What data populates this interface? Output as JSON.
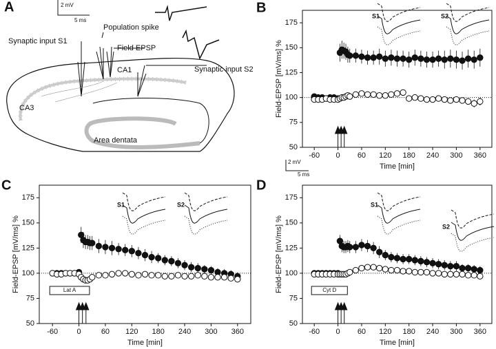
{
  "diagram": {
    "panel": "A",
    "labels": [
      "Synaptic input S1",
      "Population spike",
      "Field EPSP",
      "CA1",
      "Synaptic input S2",
      "CA3",
      "Area dentata"
    ],
    "scale_bar": {
      "amplitude": "2 mV",
      "time": "5 ms"
    }
  },
  "scale_bar": {
    "amplitude": "2 mV",
    "time": "5 ms"
  },
  "chart_data": [
    {
      "type": "scatter",
      "panel": "B",
      "xlabel": "Time [min]",
      "ylabel": "Field-EPSP [mV/ms] %",
      "xlim": [
        -90,
        390
      ],
      "ylim": [
        50,
        187.5
      ],
      "xticks": [
        -60,
        0,
        60,
        120,
        180,
        240,
        300,
        360
      ],
      "yticks": [
        50,
        75,
        100,
        125,
        150,
        175
      ],
      "reference_y": 100,
      "arrows_x": [
        0,
        8,
        16
      ],
      "inset_labels": [
        "S1",
        "S2"
      ],
      "x": [
        -60,
        -50,
        -40,
        -30,
        -20,
        -10,
        0,
        5,
        10,
        15,
        20,
        25,
        30,
        45,
        60,
        75,
        90,
        105,
        120,
        135,
        150,
        165,
        180,
        195,
        210,
        225,
        240,
        255,
        270,
        285,
        300,
        315,
        330,
        345,
        360
      ],
      "series": [
        {
          "name": "S1",
          "color": "#111111",
          "filled": true,
          "values": [
            101,
            100,
            100,
            99,
            100,
            100,
            99,
            145,
            148,
            147,
            146,
            143,
            142,
            142,
            141,
            140,
            140,
            141,
            139,
            140,
            139,
            139,
            138,
            140,
            139,
            138,
            138,
            139,
            138,
            139,
            138,
            137,
            139,
            138,
            140
          ],
          "errors": [
            2,
            2,
            2,
            2,
            2,
            2,
            2,
            9,
            9,
            8,
            8,
            8,
            7,
            7,
            7,
            7,
            7,
            8,
            8,
            8,
            8,
            8,
            8,
            8,
            8,
            8,
            8,
            8,
            9,
            9,
            9,
            9,
            9,
            9,
            9
          ]
        },
        {
          "name": "S2",
          "color": "#111111",
          "filled": false,
          "values": [
            98,
            98,
            98,
            99,
            98,
            98,
            98,
            99,
            100,
            100,
            101,
            102,
            101,
            103,
            104,
            103,
            103,
            102,
            102,
            103,
            104,
            105,
            99,
            100,
            99,
            98,
            98,
            99,
            98,
            97,
            98,
            97,
            96,
            94,
            96
          ],
          "errors": [
            2,
            2,
            2,
            2,
            2,
            2,
            2,
            2,
            2,
            2,
            2,
            2,
            2,
            2,
            2,
            2,
            2,
            2,
            2,
            2,
            2,
            2,
            2,
            2,
            2,
            2,
            2,
            2,
            3,
            3,
            3,
            3,
            3,
            4,
            4
          ]
        }
      ]
    },
    {
      "type": "scatter",
      "panel": "C",
      "xlabel": "Time [min]",
      "ylabel": "Field-EPSP [mV/ms] %",
      "xlim": [
        -90,
        390
      ],
      "ylim": [
        50,
        187.5
      ],
      "xticks": [
        -60,
        0,
        60,
        120,
        180,
        240,
        300,
        360
      ],
      "yticks": [
        50,
        75,
        100,
        125,
        150,
        175
      ],
      "reference_y": 100,
      "arrows_x": [
        0,
        8,
        16
      ],
      "inset_labels": [
        "S1",
        "S2"
      ],
      "drug_label": "Lat A",
      "x": [
        -60,
        -50,
        -40,
        -30,
        -20,
        -10,
        0,
        5,
        10,
        15,
        20,
        25,
        30,
        45,
        60,
        75,
        90,
        105,
        120,
        135,
        150,
        165,
        180,
        195,
        210,
        225,
        240,
        255,
        270,
        285,
        300,
        315,
        330,
        345,
        360
      ],
      "series": [
        {
          "name": "S1",
          "color": "#111111",
          "filled": true,
          "values": [
            100,
            100,
            100,
            100,
            100,
            100,
            101,
            138,
            133,
            131,
            131,
            130,
            130,
            127,
            126,
            125,
            124,
            123,
            122,
            120,
            118,
            116,
            115,
            113,
            112,
            110,
            108,
            106,
            105,
            104,
            103,
            101,
            100,
            99,
            97
          ],
          "errors": [
            2,
            2,
            2,
            2,
            2,
            2,
            2,
            8,
            8,
            7,
            7,
            7,
            7,
            7,
            7,
            7,
            6,
            6,
            6,
            6,
            6,
            6,
            5,
            5,
            5,
            5,
            5,
            5,
            5,
            4,
            4,
            4,
            4,
            4,
            4
          ]
        },
        {
          "name": "S2",
          "color": "#111111",
          "filled": false,
          "values": [
            100,
            99,
            99,
            100,
            100,
            100,
            99,
            96,
            94,
            93,
            93,
            94,
            96,
            98,
            98,
            99,
            100,
            100,
            99,
            98,
            99,
            98,
            98,
            97,
            97,
            98,
            97,
            97,
            98,
            97,
            96,
            96,
            96,
            95,
            94
          ],
          "errors": [
            2,
            2,
            2,
            2,
            2,
            2,
            2,
            3,
            3,
            3,
            3,
            3,
            3,
            3,
            3,
            3,
            3,
            3,
            3,
            3,
            3,
            3,
            3,
            3,
            3,
            3,
            3,
            3,
            3,
            3,
            3,
            3,
            3,
            3,
            3
          ]
        }
      ]
    },
    {
      "type": "scatter",
      "panel": "D",
      "xlabel": "Time [min]",
      "ylabel": "Field-EPSP [mV/ms] %",
      "xlim": [
        -90,
        390
      ],
      "ylim": [
        50,
        187.5
      ],
      "xticks": [
        -60,
        0,
        60,
        120,
        180,
        240,
        300,
        360
      ],
      "yticks": [
        50,
        75,
        100,
        125,
        150,
        175
      ],
      "reference_y": 100,
      "arrows_x": [
        0,
        8,
        16
      ],
      "inset_labels": [
        "S1",
        "S2"
      ],
      "drug_label": "Cyt D",
      "x": [
        -60,
        -50,
        -40,
        -30,
        -20,
        -10,
        0,
        5,
        10,
        15,
        20,
        25,
        30,
        45,
        60,
        75,
        90,
        105,
        120,
        135,
        150,
        165,
        180,
        195,
        210,
        225,
        240,
        255,
        270,
        285,
        300,
        315,
        330,
        345,
        360
      ],
      "series": [
        {
          "name": "S1",
          "color": "#111111",
          "filled": true,
          "values": [
            100,
            100,
            100,
            100,
            100,
            100,
            100,
            132,
            127,
            126,
            126,
            127,
            126,
            126,
            128,
            127,
            125,
            121,
            118,
            116,
            115,
            114,
            114,
            113,
            112,
            111,
            110,
            109,
            108,
            107,
            107,
            105,
            105,
            104,
            103
          ],
          "errors": [
            2,
            2,
            2,
            2,
            2,
            2,
            2,
            6,
            6,
            6,
            6,
            6,
            6,
            6,
            6,
            6,
            6,
            6,
            5,
            5,
            5,
            5,
            5,
            5,
            5,
            5,
            5,
            5,
            5,
            5,
            5,
            4,
            4,
            4,
            4
          ]
        },
        {
          "name": "S2",
          "color": "#111111",
          "filled": false,
          "values": [
            99,
            99,
            99,
            99,
            99,
            99,
            99,
            99,
            99,
            99,
            99,
            100,
            101,
            103,
            105,
            106,
            106,
            105,
            104,
            103,
            103,
            102,
            102,
            101,
            101,
            101,
            100,
            100,
            99,
            99,
            99,
            99,
            98,
            98,
            97
          ],
          "errors": [
            1,
            1,
            1,
            1,
            1,
            1,
            1,
            2,
            2,
            2,
            2,
            2,
            2,
            2,
            2,
            2,
            2,
            2,
            2,
            2,
            2,
            2,
            2,
            2,
            2,
            2,
            2,
            2,
            2,
            2,
            2,
            2,
            2,
            2,
            2
          ]
        }
      ]
    }
  ]
}
